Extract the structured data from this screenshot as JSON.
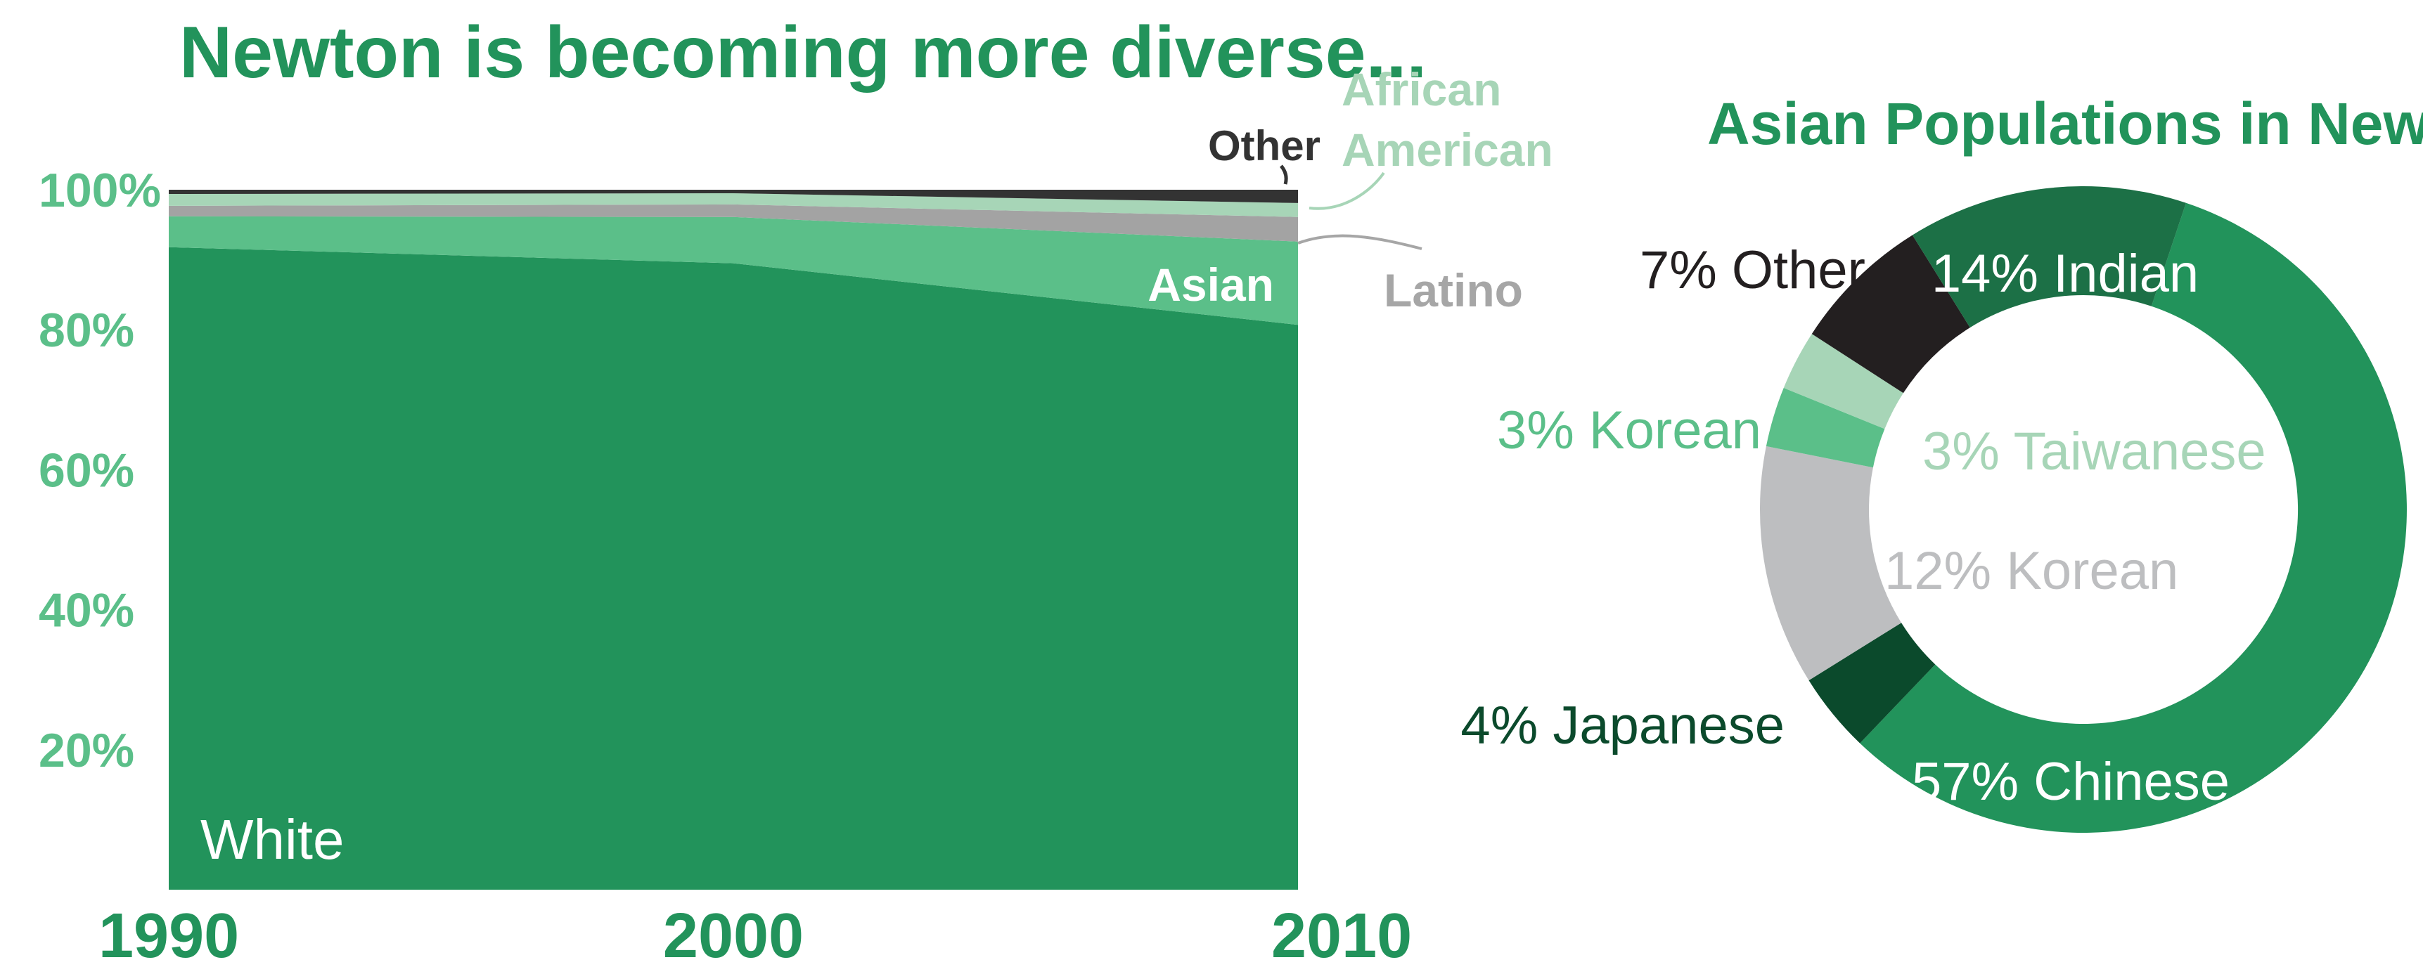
{
  "chart_data": [
    {
      "type": "area",
      "title": "Newton is becoming more diverse...",
      "stacked": true,
      "normalized": true,
      "x": [
        1990,
        2000,
        2010
      ],
      "x_tick_labels": [
        "1990",
        "2000",
        "2010"
      ],
      "ylim": [
        0,
        100
      ],
      "y_ticks": [
        20,
        40,
        60,
        80,
        100
      ],
      "y_tick_labels": [
        "20%",
        "40%",
        "60%",
        "80%",
        "100%"
      ],
      "grid": false,
      "legend": "inline labels",
      "series": [
        {
          "name": "White",
          "values": [
            91.8,
            89.5,
            80.7
          ],
          "color": "#22935b"
        },
        {
          "name": "Asian",
          "values": [
            4.4,
            6.6,
            11.9
          ],
          "color": "#5bbf89"
        },
        {
          "name": "Latino",
          "values": [
            1.5,
            1.8,
            3.5
          ],
          "color": "#a3a3a3"
        },
        {
          "name": "African American",
          "values": [
            1.7,
            1.6,
            2.0
          ],
          "color": "#a7d5b7"
        },
        {
          "name": "Other",
          "values": [
            0.6,
            0.5,
            1.9
          ],
          "color": "#333333"
        }
      ],
      "label_colors": {
        "White": "#ffffff",
        "Asian": "#ffffff",
        "Latino": "#a6a6a6",
        "African American": "#a7d5b7",
        "Other": "#333333"
      },
      "title_color": "#22935b",
      "tick_color": "#5bbf89",
      "x_tick_color": "#22935b"
    },
    {
      "type": "pie",
      "donut": true,
      "title": "Asian Populations in Newton",
      "title_color": "#22935b",
      "slices": [
        {
          "label": "57% Chinese",
          "value": 57,
          "color": "#22935b",
          "text_color": "#ffffff"
        },
        {
          "label": "4% Japanese",
          "value": 4,
          "color": "#0b4a2c",
          "text_color": "#0b4a2c"
        },
        {
          "label": "12% Korean",
          "value": 12,
          "color": "#bdbec0",
          "text_color": "#bdbec0"
        },
        {
          "label": "3% Korean",
          "value": 3,
          "color": "#5bbf89",
          "text_color": "#5bbf89"
        },
        {
          "label": "3% Taiwanese",
          "value": 3,
          "color": "#a7d5b7",
          "text_color": "#a7d5b7"
        },
        {
          "label": "7% Other",
          "value": 7,
          "color": "#231f20",
          "text_color": "#231f20"
        },
        {
          "label": "14% Indian",
          "value": 14,
          "color": "#1c7046",
          "text_color": "#ffffff"
        }
      ]
    }
  ]
}
